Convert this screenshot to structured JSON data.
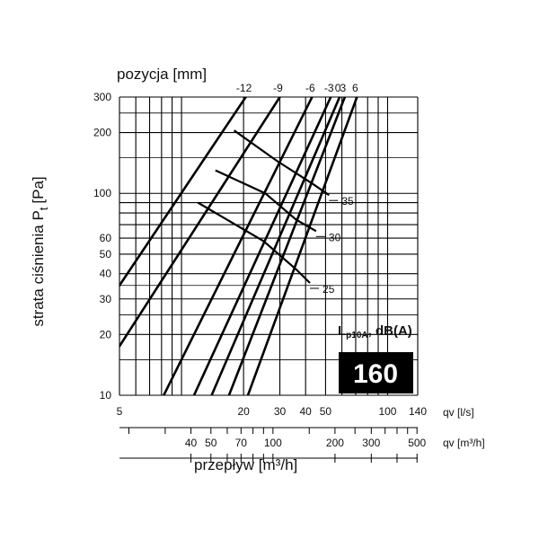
{
  "chart_data": {
    "type": "line",
    "x_scale": "log",
    "y_scale": "log",
    "top_axis_title": "pozycja [mm]",
    "ylabel_main": "strata ciśnienia P",
    "ylabel_sub": "t",
    "ylabel_unit": "[Pa]",
    "xlabel": "przepływ [m³/h]",
    "xlim_ls": [
      5,
      140
    ],
    "ylim": [
      10,
      300
    ],
    "y_ticks": [
      10,
      20,
      30,
      40,
      50,
      60,
      100,
      200,
      300
    ],
    "qv_ls_label": "qv [l/s]",
    "qv_ls_ticks": [
      5,
      20,
      30,
      40,
      50,
      100,
      140
    ],
    "qv_m3h_label": "qv [m³/h]",
    "qv_m3h_ticks": [
      40,
      50,
      70,
      100,
      200,
      300,
      500
    ],
    "bottom_m3h_ticks": [
      40,
      50,
      60,
      70,
      80,
      90,
      100,
      200,
      300,
      400,
      500
    ],
    "series": [
      {
        "name": "-12",
        "points": [
          [
            5.0,
            35
          ],
          [
            20.5,
            300
          ]
        ]
      },
      {
        "name": "-9",
        "points": [
          [
            5.0,
            17.5
          ],
          [
            30.0,
            300
          ]
        ]
      },
      {
        "name": "-6",
        "points": [
          [
            8.2,
            10
          ],
          [
            43.0,
            300
          ]
        ]
      },
      {
        "name": "-3",
        "points": [
          [
            11.5,
            10
          ],
          [
            53.0,
            300
          ]
        ]
      },
      {
        "name": "0",
        "points": [
          [
            14.0,
            10
          ],
          [
            58.5,
            300
          ]
        ]
      },
      {
        "name": "3",
        "points": [
          [
            17.0,
            10
          ],
          [
            62.0,
            300
          ]
        ]
      },
      {
        "name": "6",
        "points": [
          [
            21.0,
            10
          ],
          [
            71.0,
            300
          ]
        ]
      }
    ],
    "iso_lines": [
      {
        "label": "25",
        "points": [
          [
            12.0,
            90
          ],
          [
            25.0,
            58
          ],
          [
            36.0,
            42
          ],
          [
            42.0,
            36
          ]
        ]
      },
      {
        "label": "30",
        "points": [
          [
            14.6,
            130
          ],
          [
            25.5,
            100
          ],
          [
            36.0,
            74
          ],
          [
            45.0,
            65
          ]
        ]
      },
      {
        "label": "35",
        "points": [
          [
            18.0,
            205
          ],
          [
            29.0,
            145
          ],
          [
            43.0,
            112
          ],
          [
            52.0,
            98
          ]
        ]
      }
    ],
    "legend_title": "L",
    "legend_title_sub": "p10A",
    "legend_title_suffix": ", dB(A)",
    "model_label": "160"
  }
}
